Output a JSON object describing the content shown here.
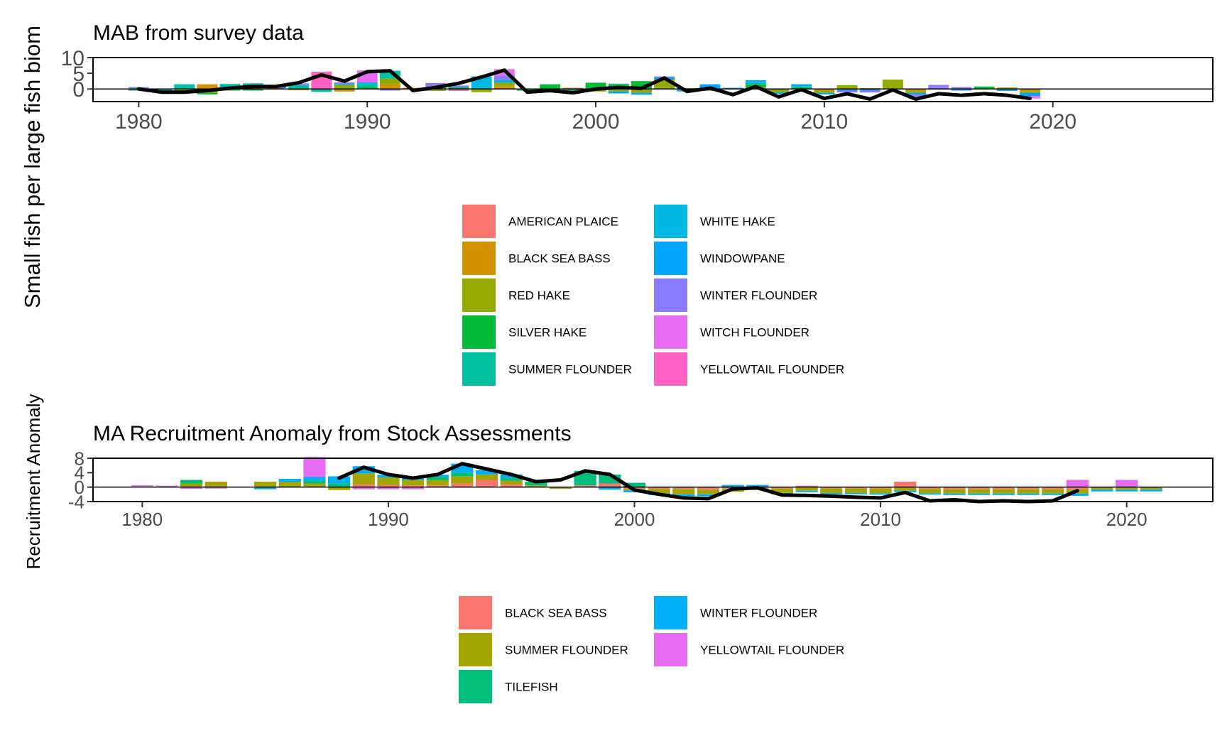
{
  "chart_data": [
    {
      "type": "bar",
      "stacking": "diverging",
      "overlay": "line",
      "title": "MAB from survey data",
      "ylabel": "Small fish per large fish biom",
      "xlabel": "",
      "xlim": [
        1978,
        2027
      ],
      "ylim": [
        -4,
        10
      ],
      "x_ticks": [
        1980,
        1990,
        2000,
        2010,
        2020
      ],
      "y_ticks": [
        10,
        5,
        0
      ],
      "grid": false,
      "legend_position": "bottom",
      "legend": [
        "AMERICAN PLAICE",
        "BLACK SEA BASS",
        "RED HAKE",
        "SILVER HAKE",
        "SUMMER FLOUNDER",
        "WHITE HAKE",
        "WINDOWPANE",
        "WINTER FLOUNDER",
        "WITCH FLOUNDER",
        "YELLOWTAIL FLOUNDER"
      ],
      "colors": [
        "#F8766D",
        "#D39200",
        "#93AA00",
        "#00BA38",
        "#00C19F",
        "#00B9E3",
        "#00A5FF",
        "#8C7BFF",
        "#E76BF3",
        "#FF61C3"
      ],
      "x": [
        1980,
        1981,
        1982,
        1983,
        1984,
        1985,
        1986,
        1987,
        1988,
        1989,
        1990,
        1991,
        1992,
        1993,
        1994,
        1995,
        1996,
        1997,
        1998,
        1999,
        2000,
        2001,
        2002,
        2003,
        2004,
        2005,
        2006,
        2007,
        2008,
        2009,
        2010,
        2011,
        2012,
        2013,
        2014,
        2015,
        2016,
        2017,
        2018,
        2019
      ],
      "series": [
        {
          "name": "AMERICAN PLAICE",
          "values": [
            0,
            0,
            0,
            0,
            0,
            0,
            0,
            0,
            0,
            0,
            0,
            0,
            0,
            0,
            0,
            0,
            0,
            0,
            0,
            0,
            0,
            0,
            0,
            0,
            0,
            0,
            0,
            0,
            0,
            0,
            0,
            0,
            0,
            0,
            0,
            0,
            0,
            0,
            0,
            0
          ]
        },
        {
          "name": "BLACK SEA BASS",
          "values": [
            0,
            0,
            0,
            1.5,
            0,
            1,
            0.3,
            0,
            0,
            -0.8,
            0,
            1.5,
            0.4,
            0,
            0,
            0,
            1,
            0,
            0,
            0.4,
            0,
            0.8,
            0,
            0,
            0,
            0,
            0,
            0,
            0,
            0,
            -0.5,
            0,
            0,
            0,
            -0.7,
            0,
            0,
            0,
            0.2,
            -0.8
          ]
        },
        {
          "name": "RED HAKE",
          "values": [
            0,
            0,
            -1,
            -1.2,
            0,
            0,
            0,
            -0.4,
            0,
            1.2,
            0,
            1.8,
            0,
            -0.6,
            0,
            -1,
            1,
            0,
            0,
            0,
            -0.8,
            -0.8,
            -1.2,
            3,
            0.3,
            -0.6,
            0,
            0.6,
            -1,
            0,
            -0.7,
            1.2,
            0.3,
            3,
            -0.5,
            0,
            0,
            0,
            0.3,
            -0.4
          ]
        },
        {
          "name": "SILVER HAKE",
          "values": [
            -0.5,
            0,
            0,
            -0.5,
            -0.5,
            -0.5,
            0,
            0,
            0,
            0,
            0.6,
            0,
            0,
            0,
            0.6,
            0,
            0,
            -0.5,
            1.5,
            0,
            2,
            0.7,
            2.5,
            0,
            0,
            0,
            0,
            0.9,
            0,
            0.5,
            0,
            0,
            0,
            0,
            0,
            0,
            0,
            0.8,
            0,
            0
          ]
        },
        {
          "name": "SUMMER FLOUNDER",
          "values": [
            0,
            -0.6,
            1.5,
            0,
            1.6,
            0.8,
            0,
            1.2,
            -0.9,
            0.4,
            1,
            2.5,
            0,
            0.4,
            0,
            0.5,
            0,
            0,
            -0.6,
            -0.5,
            0,
            0.2,
            0,
            0,
            0,
            0,
            0,
            0.4,
            0,
            0.4,
            0,
            0,
            0,
            0,
            0,
            0,
            0,
            0,
            0,
            0
          ]
        },
        {
          "name": "WHITE HAKE",
          "values": [
            0,
            0,
            0,
            0,
            0,
            0,
            0,
            0,
            0,
            0,
            0.5,
            0,
            0,
            0,
            0,
            3.5,
            0.8,
            0,
            0,
            -0.6,
            0,
            0,
            0,
            0,
            -0.8,
            0,
            0,
            0.4,
            0,
            0,
            0,
            0,
            0,
            0,
            0,
            0,
            0,
            0,
            0,
            0
          ]
        },
        {
          "name": "WINDOWPANE",
          "values": [
            0,
            0,
            0,
            0,
            0,
            0,
            0.6,
            0,
            0,
            0,
            0,
            0,
            0,
            0,
            0,
            0,
            0,
            0,
            -0.5,
            0,
            0,
            -0.6,
            -0.6,
            0.7,
            0,
            1.5,
            0.4,
            0.5,
            -0.5,
            0.6,
            -0.5,
            -0.5,
            -0.5,
            0,
            -0.5,
            0,
            -0.5,
            0,
            -0.6,
            -1
          ]
        },
        {
          "name": "WINTER FLOUNDER",
          "values": [
            0.6,
            0,
            0,
            0,
            0,
            0,
            0,
            0.6,
            0,
            0.5,
            0,
            -0.5,
            0,
            1.5,
            0.5,
            0,
            1.5,
            0,
            0,
            0,
            0,
            0,
            0,
            0.3,
            0,
            0,
            0,
            0,
            0,
            0,
            0,
            -0.6,
            -0.6,
            0,
            -0.7,
            1.3,
            0.6,
            0,
            0,
            0
          ]
        },
        {
          "name": "WITCH FLOUNDER",
          "values": [
            0,
            0,
            0,
            0,
            0,
            0,
            0,
            0,
            0,
            0,
            3.8,
            0,
            0,
            0,
            0,
            0,
            2,
            0,
            0,
            0,
            0,
            0,
            0,
            0,
            0,
            0,
            0,
            0,
            0,
            0,
            0,
            0,
            0,
            0,
            0,
            0,
            0,
            0,
            0,
            -0.8
          ]
        },
        {
          "name": "YELLOWTAIL FLOUNDER",
          "values": [
            0,
            0,
            0,
            0,
            0,
            0,
            0,
            0,
            5.5,
            0,
            0,
            0,
            0,
            0,
            -0.6,
            0,
            0,
            0,
            0,
            0,
            0,
            0,
            0,
            0,
            0,
            0,
            0,
            0,
            0,
            0,
            0,
            0,
            0,
            0,
            0,
            0,
            0,
            0,
            0,
            0
          ]
        }
      ],
      "line": {
        "x": [
          1980,
          1981,
          1982,
          1983,
          1984,
          1985,
          1986,
          1987,
          1988,
          1989,
          1990,
          1991,
          1992,
          1993,
          1994,
          1995,
          1996,
          1997,
          1998,
          1999,
          2000,
          2001,
          2002,
          2003,
          2004,
          2005,
          2006,
          2007,
          2008,
          2009,
          2010,
          2011,
          2012,
          2013,
          2014,
          2015,
          2016,
          2017,
          2018,
          2019
        ],
        "values": [
          0,
          -1,
          -1,
          -0.5,
          0.3,
          0.8,
          0.8,
          2,
          4.5,
          2.5,
          5.5,
          5.8,
          -0.5,
          0.5,
          1.8,
          3.8,
          6,
          -1,
          -0.5,
          -1.2,
          0,
          0.5,
          0.2,
          3.5,
          -0.8,
          0.3,
          -1.8,
          0.8,
          -2.5,
          -0.2,
          -3,
          -1.5,
          -3.2,
          -0.3,
          -3.2,
          -1.5,
          -2,
          -1.5,
          -2,
          -3
        ]
      }
    },
    {
      "type": "bar",
      "stacking": "diverging",
      "overlay": "line",
      "title": "MA Recruitment Anomaly from Stock Assessments",
      "ylabel": "Recruitment Anomaly",
      "xlabel": "",
      "xlim": [
        1978,
        2023.5
      ],
      "ylim": [
        -4,
        8
      ],
      "x_ticks": [
        1980,
        1990,
        2000,
        2010,
        2020
      ],
      "y_ticks": [
        8,
        4,
        0,
        -4
      ],
      "grid": false,
      "legend_position": "bottom",
      "legend": [
        "BLACK SEA BASS",
        "SUMMER FLOUNDER",
        "TILEFISH",
        "WINTER FLOUNDER",
        "YELLOWTAIL FLOUNDER"
      ],
      "colors": [
        "#F8766D",
        "#A3A500",
        "#00BF7D",
        "#00B0F6",
        "#E76BF3"
      ],
      "x": [
        1980,
        1981,
        1982,
        1983,
        1984,
        1985,
        1986,
        1987,
        1988,
        1989,
        1990,
        1991,
        1992,
        1993,
        1994,
        1995,
        1996,
        1997,
        1998,
        1999,
        2000,
        2001,
        2002,
        2003,
        2004,
        2005,
        2006,
        2007,
        2008,
        2009,
        2010,
        2011,
        2012,
        2013,
        2014,
        2015,
        2016,
        2017,
        2018,
        2019,
        2020,
        2021
      ],
      "series": [
        {
          "name": "BLACK SEA BASS",
          "values": [
            0,
            0,
            0,
            0,
            0,
            0,
            0,
            0,
            0,
            0.8,
            0.6,
            0.5,
            0.5,
            1,
            2,
            0.8,
            0,
            0,
            0.5,
            1,
            -0.5,
            -0.5,
            -0.5,
            -0.7,
            -0.5,
            -0.5,
            -0.4,
            0.4,
            -0.4,
            -0.4,
            -0.4,
            1.5,
            -0.5,
            -0.6,
            -0.6,
            -0.6,
            -0.6,
            -0.6,
            -0.6,
            0,
            0,
            0
          ]
        },
        {
          "name": "SUMMER FLOUNDER",
          "values": [
            0,
            0,
            1,
            1.5,
            0,
            1.5,
            1.5,
            1,
            -0.8,
            3,
            2,
            1.5,
            1.5,
            2,
            1.5,
            1,
            0.5,
            -0.5,
            0,
            0,
            -0.4,
            -1.2,
            -1.5,
            -1.3,
            -0.8,
            -0.3,
            -1.2,
            -1,
            -1.2,
            -1.2,
            -1.3,
            -1,
            -1.2,
            -1.2,
            -1.2,
            -1.2,
            -1.2,
            -1.2,
            -1.2,
            -0.7,
            -0.7,
            -0.7
          ]
        },
        {
          "name": "TILEFISH",
          "values": [
            0,
            0,
            1,
            0,
            0,
            0,
            0,
            0.8,
            1,
            0,
            0,
            0,
            0.8,
            1,
            0,
            0.7,
            1,
            0,
            4,
            2.5,
            1.2,
            0,
            0,
            0,
            0,
            0,
            0,
            0,
            0,
            0,
            0,
            0,
            0,
            0,
            0,
            0,
            0,
            0,
            0,
            0,
            0,
            0
          ]
        },
        {
          "name": "WINTER FLOUNDER",
          "values": [
            0,
            0,
            0,
            0,
            0,
            -0.6,
            0.8,
            1,
            2,
            2,
            0.8,
            0.8,
            0.6,
            2.5,
            1.2,
            1,
            0,
            0,
            0,
            -0.7,
            -0.5,
            -0.5,
            -0.5,
            -0.5,
            0.6,
            0.6,
            -0.4,
            -0.4,
            -0.4,
            -0.4,
            -0.4,
            -0.4,
            -0.4,
            -0.4,
            -0.4,
            -0.4,
            -0.4,
            -0.4,
            -0.6,
            -0.5,
            -0.5,
            -0.5
          ]
        },
        {
          "name": "YELLOWTAIL FLOUNDER",
          "values": [
            0.5,
            0.4,
            -0.5,
            -0.4,
            0,
            0,
            0,
            5.5,
            0,
            -0.6,
            -0.6,
            -0.6,
            0,
            0,
            0,
            0,
            0,
            0,
            0,
            0,
            0,
            0,
            0,
            0,
            0,
            0,
            0,
            0,
            0,
            0,
            0,
            0,
            0,
            0,
            0,
            0,
            0,
            0,
            2,
            0,
            2,
            0
          ]
        }
      ],
      "line": {
        "x": [
          1988,
          1989,
          1990,
          1991,
          1992,
          1993,
          1994,
          1995,
          1996,
          1997,
          1998,
          1999,
          2000,
          2001,
          2002,
          2003,
          2004,
          2005,
          2006,
          2007,
          2008,
          2009,
          2010,
          2011,
          2012,
          2013,
          2014,
          2015,
          2016,
          2017,
          2018
        ],
        "values": [
          2.5,
          5.5,
          3.5,
          2.5,
          3.5,
          6.5,
          5,
          3.5,
          1.5,
          2,
          4.5,
          3.5,
          -0.8,
          -2,
          -3,
          -3.2,
          -0.5,
          -0.2,
          -2.2,
          -2.3,
          -2.5,
          -2.8,
          -3,
          -1.5,
          -3.8,
          -3.5,
          -4,
          -3.8,
          -4,
          -3.8,
          -1
        ]
      }
    }
  ]
}
